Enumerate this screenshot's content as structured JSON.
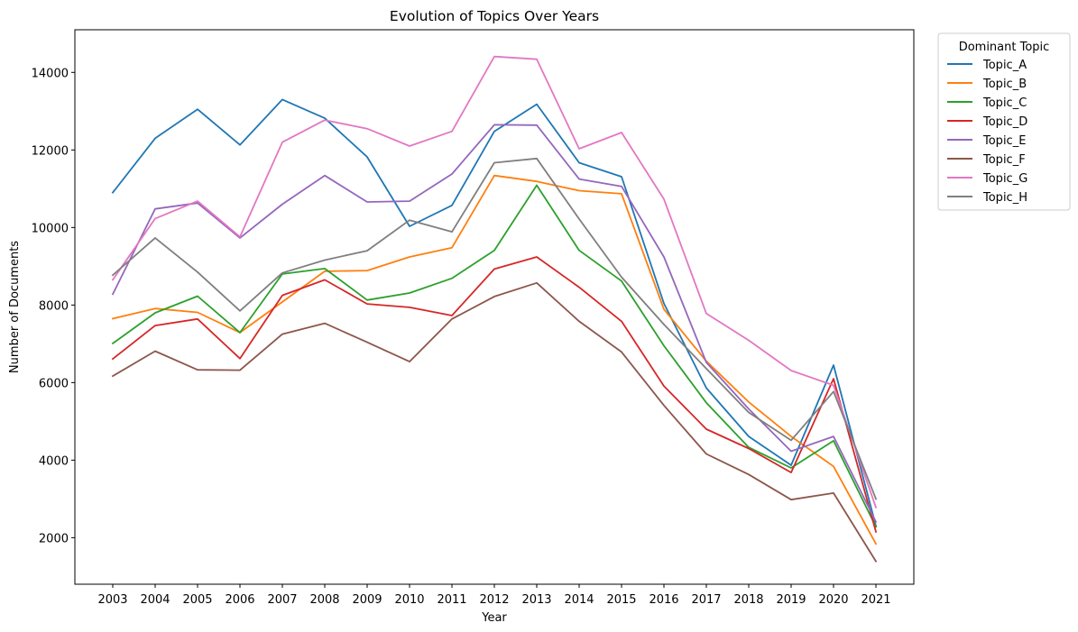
{
  "chart_data": {
    "type": "line",
    "title": "Evolution of Topics Over Years",
    "xlabel": "Year",
    "ylabel": "Number of Documents",
    "ylim": [
      800,
      15100
    ],
    "yticks": [
      2000,
      4000,
      6000,
      8000,
      10000,
      12000,
      14000
    ],
    "ytick_labels": [
      "2000",
      "4000",
      "6000",
      "8000",
      "10000",
      "12000",
      "14000"
    ],
    "grid": false,
    "legend": {
      "title": "Dominant Topic",
      "placement": "outside-right"
    },
    "x": [
      "2003",
      "2004",
      "2005",
      "2006",
      "2007",
      "2008",
      "2009",
      "2010",
      "2011",
      "2012",
      "2013",
      "2014",
      "2015",
      "2016",
      "2017",
      "2018",
      "2019",
      "2020",
      "2021"
    ],
    "series": [
      {
        "name": "Topic_A",
        "color": "#1f77b4",
        "values": [
          10900,
          12300,
          13050,
          12130,
          13300,
          12820,
          11820,
          10030,
          10570,
          12480,
          13180,
          11670,
          11310,
          8040,
          5860,
          4610,
          3870,
          6450,
          2300
        ]
      },
      {
        "name": "Topic_B",
        "color": "#ff7f0e",
        "values": [
          7650,
          7910,
          7810,
          7290,
          8080,
          8870,
          8890,
          9240,
          9480,
          11340,
          11190,
          10950,
          10870,
          7890,
          6550,
          5500,
          4610,
          3840,
          1840
        ]
      },
      {
        "name": "Topic_C",
        "color": "#2ca02c",
        "values": [
          7010,
          7800,
          8230,
          7290,
          8800,
          8940,
          8130,
          8310,
          8690,
          9410,
          11090,
          9410,
          8620,
          6950,
          5480,
          4330,
          3800,
          4500,
          2280
        ]
      },
      {
        "name": "Topic_D",
        "color": "#d62728",
        "values": [
          6610,
          7470,
          7640,
          6620,
          8250,
          8650,
          8030,
          7940,
          7730,
          8930,
          9240,
          8460,
          7580,
          5910,
          4800,
          4300,
          3680,
          6100,
          2150
        ]
      },
      {
        "name": "Topic_E",
        "color": "#9467bd",
        "values": [
          8280,
          10480,
          10630,
          9730,
          10600,
          11340,
          10660,
          10680,
          11380,
          12650,
          12640,
          11250,
          11060,
          9240,
          6520,
          5320,
          4230,
          4610,
          2410
        ]
      },
      {
        "name": "Topic_F",
        "color": "#8c564b",
        "values": [
          6170,
          6810,
          6330,
          6320,
          7250,
          7530,
          7040,
          6540,
          7640,
          8220,
          8570,
          7580,
          6790,
          5410,
          4160,
          3630,
          2980,
          3150,
          1390
        ]
      },
      {
        "name": "Topic_G",
        "color": "#e377c2",
        "values": [
          8650,
          10230,
          10680,
          9760,
          12200,
          12770,
          12550,
          12100,
          12480,
          14410,
          14340,
          12030,
          12450,
          10730,
          7780,
          7090,
          6310,
          5930,
          2780
        ]
      },
      {
        "name": "Topic_H",
        "color": "#7f7f7f",
        "values": [
          8770,
          9730,
          8850,
          7850,
          8830,
          9160,
          9400,
          10190,
          9890,
          11670,
          11780,
          10220,
          8720,
          7500,
          6360,
          5230,
          4510,
          5770,
          3000
        ]
      }
    ]
  }
}
